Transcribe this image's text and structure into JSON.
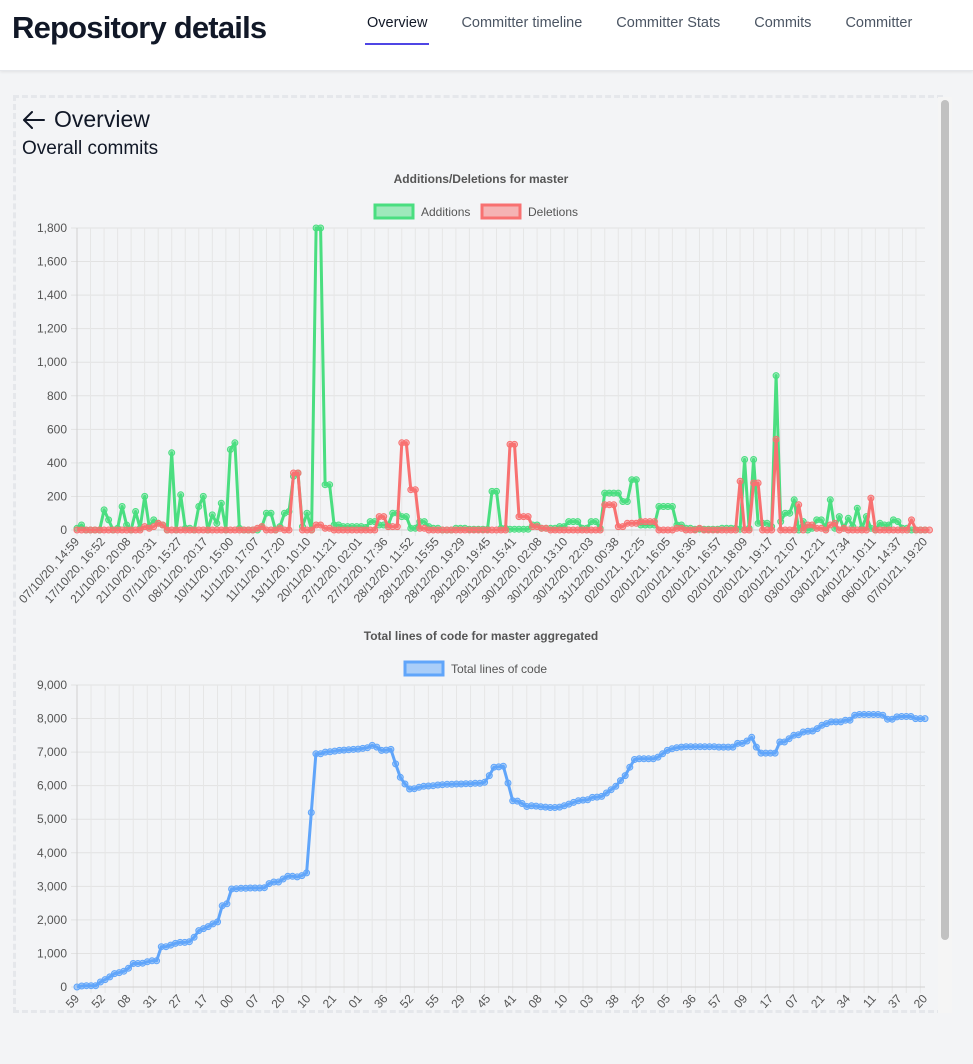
{
  "header": {
    "title": "Repository details",
    "tabs": [
      {
        "label": "Overview",
        "active": true
      },
      {
        "label": "Committer timeline",
        "active": false
      },
      {
        "label": "Committer Stats",
        "active": false
      },
      {
        "label": "Commits",
        "active": false
      },
      {
        "label": "Committer",
        "active": false
      }
    ]
  },
  "panel": {
    "back_label": "Overview",
    "subtitle": "Overall commits"
  },
  "colors": {
    "additions": "#4ade80",
    "deletions": "#f87171",
    "total": "#60a5fa",
    "accent": "#4f46e5"
  },
  "chart_data": [
    {
      "type": "line",
      "title": "Additions/Deletions for master",
      "ylim": [
        0,
        1800
      ],
      "yticks": [
        0,
        200,
        400,
        600,
        800,
        1000,
        1200,
        1400,
        1600,
        1800
      ],
      "grid": true,
      "legend": "top",
      "tick_labels": [
        "07/10/20, 14:59",
        "17/10/20, 16:52",
        "21/10/20, 20:08",
        "21/10/20, 20:31",
        "07/11/20, 15:27",
        "08/11/20, 20:17",
        "10/11/20, 15:00",
        "11/11/20, 17:07",
        "11/11/20, 17:20",
        "13/11/20, 10:10",
        "20/11/20, 11:21",
        "27/12/20, 02:01",
        "27/12/20, 17:36",
        "28/12/20, 11:52",
        "28/12/20, 15:55",
        "28/12/20, 19:29",
        "28/12/20, 19:45",
        "29/12/20, 15:41",
        "30/12/20, 02:08",
        "30/12/20, 13:10",
        "30/12/20, 22:03",
        "31/12/20, 00:38",
        "02/01/21, 12:25",
        "02/01/21, 16:05",
        "02/01/21, 16:36",
        "02/01/21, 16:57",
        "02/01/21, 18:09",
        "02/01/21, 19:17",
        "02/01/21, 21:07",
        "03/01/21, 12:21",
        "03/01/21, 17:34",
        "04/01/21, 10:11",
        "06/01/21, 14:37",
        "07/01/21, 19:20"
      ],
      "series": [
        {
          "name": "Additions",
          "values": [
            10,
            30,
            0,
            0,
            0,
            0,
            120,
            60,
            0,
            10,
            140,
            30,
            0,
            110,
            10,
            200,
            20,
            60,
            40,
            30,
            0,
            460,
            0,
            210,
            10,
            10,
            0,
            140,
            200,
            0,
            90,
            40,
            160,
            0,
            480,
            520,
            10,
            0,
            0,
            0,
            0,
            20,
            100,
            100,
            0,
            20,
            100,
            110,
            320,
            340,
            20,
            100,
            0,
            1800,
            1800,
            270,
            270,
            30,
            30,
            20,
            20,
            20,
            20,
            20,
            15,
            50,
            50,
            30,
            30,
            30,
            100,
            100,
            80,
            80,
            10,
            10,
            50,
            50,
            20,
            10,
            10,
            0,
            0,
            0,
            10,
            10,
            10,
            5,
            5,
            5,
            5,
            5,
            230,
            230,
            10,
            10,
            5,
            5,
            5,
            5,
            5,
            30,
            30,
            10,
            10,
            10,
            10,
            20,
            20,
            50,
            50,
            50,
            10,
            10,
            50,
            50,
            10,
            220,
            220,
            220,
            220,
            170,
            170,
            300,
            300,
            30,
            30,
            30,
            30,
            140,
            140,
            140,
            140,
            30,
            30,
            10,
            10,
            5,
            5,
            5,
            5,
            5,
            5,
            10,
            10,
            10,
            10,
            5,
            420,
            10,
            420,
            40,
            40,
            40,
            20,
            920,
            50,
            100,
            100,
            180,
            0,
            50,
            0,
            10,
            60,
            60,
            10,
            180,
            10,
            80,
            10,
            70,
            20,
            130,
            10,
            80,
            10,
            0,
            40,
            30,
            30,
            60,
            50,
            10,
            10,
            0,
            0,
            0,
            0
          ]
        },
        {
          "name": "Deletions",
          "values": [
            0,
            0,
            0,
            0,
            0,
            0,
            0,
            0,
            0,
            0,
            0,
            0,
            0,
            0,
            0,
            20,
            10,
            20,
            40,
            30,
            0,
            0,
            0,
            0,
            0,
            0,
            0,
            0,
            0,
            0,
            0,
            0,
            0,
            0,
            0,
            0,
            0,
            0,
            0,
            0,
            10,
            20,
            0,
            0,
            0,
            10,
            0,
            0,
            340,
            340,
            0,
            0,
            0,
            30,
            30,
            10,
            10,
            0,
            0,
            0,
            0,
            0,
            0,
            0,
            0,
            0,
            0,
            80,
            80,
            20,
            20,
            20,
            520,
            520,
            240,
            240,
            10,
            10,
            0,
            0,
            0,
            0,
            0,
            0,
            0,
            0,
            0,
            0,
            0,
            0,
            0,
            0,
            0,
            0,
            0,
            0,
            510,
            510,
            80,
            80,
            80,
            20,
            20,
            10,
            10,
            0,
            0,
            0,
            0,
            0,
            0,
            0,
            0,
            0,
            0,
            0,
            0,
            150,
            150,
            150,
            20,
            20,
            40,
            40,
            40,
            50,
            50,
            50,
            50,
            0,
            0,
            0,
            0,
            10,
            10,
            0,
            0,
            0,
            10,
            0,
            0,
            0,
            0,
            0,
            0,
            0,
            0,
            290,
            0,
            0,
            280,
            280,
            0,
            0,
            0,
            540,
            0,
            0,
            0,
            0,
            150,
            0,
            30,
            30,
            10,
            10,
            0,
            30,
            40,
            0,
            10,
            0,
            0,
            0,
            0,
            0,
            190,
            0,
            0,
            0,
            0,
            0,
            0,
            0,
            0,
            60,
            0,
            0,
            0,
            0
          ]
        }
      ]
    },
    {
      "type": "line",
      "title": "Total lines of code for master aggregated",
      "ylim": [
        0,
        9000
      ],
      "yticks": [
        0,
        1000,
        2000,
        3000,
        4000,
        5000,
        6000,
        7000,
        8000,
        9000
      ],
      "grid": true,
      "legend": "top",
      "tick_labels": [
        "59",
        "52",
        "08",
        "31",
        "27",
        "17",
        "00",
        "07",
        "20",
        "10",
        "21",
        "01",
        "36",
        "52",
        "55",
        "29",
        "45",
        "41",
        "08",
        "10",
        "03",
        "38",
        "25",
        "05",
        "36",
        "57",
        "09",
        "17",
        "07",
        "21",
        "34",
        "11",
        "37",
        "20"
      ],
      "series": [
        {
          "name": "Total lines of code",
          "values": [
            0,
            30,
            40,
            40,
            40,
            150,
            220,
            300,
            400,
            430,
            470,
            560,
            700,
            700,
            710,
            750,
            780,
            780,
            1200,
            1200,
            1250,
            1300,
            1330,
            1330,
            1350,
            1480,
            1680,
            1740,
            1800,
            1880,
            1940,
            2420,
            2480,
            2920,
            2930,
            2940,
            2940,
            2950,
            2950,
            2950,
            2960,
            3080,
            3130,
            3130,
            3220,
            3300,
            3300,
            3280,
            3320,
            3400,
            5200,
            6950,
            6950,
            7000,
            7010,
            7030,
            7050,
            7060,
            7070,
            7080,
            7090,
            7110,
            7130,
            7200,
            7150,
            7050,
            7060,
            7080,
            6650,
            6250,
            6050,
            5900,
            5910,
            5950,
            5980,
            5990,
            6000,
            6020,
            6030,
            6040,
            6040,
            6050,
            6050,
            6060,
            6060,
            6070,
            6070,
            6100,
            6300,
            6550,
            6560,
            6580,
            6080,
            5550,
            5540,
            5470,
            5380,
            5400,
            5390,
            5370,
            5360,
            5350,
            5350,
            5360,
            5400,
            5450,
            5500,
            5550,
            5570,
            5580,
            5650,
            5660,
            5680,
            5780,
            5880,
            5980,
            6150,
            6300,
            6550,
            6780,
            6800,
            6800,
            6800,
            6800,
            6850,
            6950,
            7050,
            7100,
            7130,
            7150,
            7160,
            7160,
            7160,
            7160,
            7160,
            7160,
            7160,
            7150,
            7150,
            7150,
            7150,
            7260,
            7260,
            7330,
            7440,
            7150,
            6970,
            6970,
            6970,
            6970,
            7300,
            7300,
            7400,
            7500,
            7520,
            7600,
            7620,
            7630,
            7700,
            7800,
            7850,
            7900,
            7900,
            7900,
            7950,
            7950,
            8100,
            8120,
            8120,
            8120,
            8120,
            8120,
            8100,
            7980,
            7980,
            8050,
            8060,
            8060,
            8060,
            8000,
            8000,
            8000
          ]
        }
      ]
    }
  ]
}
